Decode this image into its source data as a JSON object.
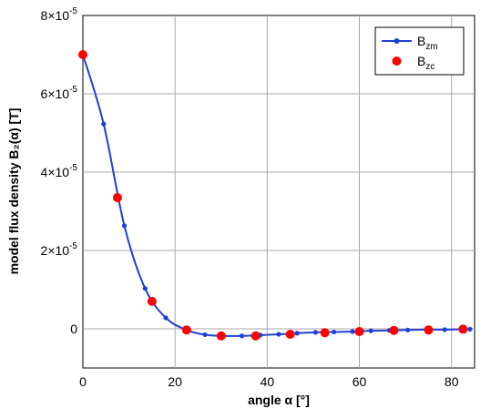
{
  "chart_data": {
    "type": "line",
    "xlabel": "angle α [°]",
    "ylabel": "model flux density B₂(α) [T]",
    "xlim": [
      0,
      85
    ],
    "ylim": [
      -1e-05,
      8e-05
    ],
    "x_ticks": [
      0,
      20,
      40,
      60,
      80
    ],
    "x_tick_labels": [
      "0",
      "20",
      "40",
      "60",
      "80"
    ],
    "y_ticks": [
      0,
      2e-05,
      4e-05,
      6e-05,
      8e-05
    ],
    "y_tick_labels": [
      {
        "base": "0",
        "exp": ""
      },
      {
        "base": "2×10",
        "exp": "-5"
      },
      {
        "base": "4×10",
        "exp": "-5"
      },
      {
        "base": "6×10",
        "exp": "-5"
      },
      {
        "base": "8×10",
        "exp": "-5"
      }
    ],
    "grid": true,
    "legend_position": "top-right",
    "series": [
      {
        "name": "B",
        "subscript": "zm",
        "style": "line+small-markers",
        "color": "#1f3fd6",
        "x": [
          0,
          4.5,
          9,
          13.5,
          18,
          22.5,
          26.5,
          30.5,
          34.5,
          38.5,
          42.5,
          46.5,
          50.5,
          54.5,
          58.5,
          62.5,
          66.5,
          70.5,
          74.5,
          78.5,
          82.5,
          84
        ],
        "y": [
          7e-05,
          5.23e-05,
          2.63e-05,
          1.03e-05,
          2.8e-06,
          -3e-07,
          -1.5e-06,
          -1.8e-06,
          -1.8e-06,
          -1.6e-06,
          -1.4e-06,
          -1.1e-06,
          -9e-07,
          -8e-07,
          -7e-07,
          -5e-07,
          -4e-07,
          -3e-07,
          -2e-07,
          -2e-07,
          -1e-07,
          -1e-07
        ]
      },
      {
        "name": "B",
        "subscript": "zc",
        "style": "markers",
        "color": "#ff0000",
        "x": [
          0,
          7.5,
          15,
          22.5,
          30,
          37.5,
          45,
          52.5,
          60,
          67.5,
          75,
          82.5
        ],
        "y": [
          7e-05,
          3.35e-05,
          7e-06,
          -3e-07,
          -1.8e-06,
          -1.8e-06,
          -1.4e-06,
          -1e-06,
          -7e-07,
          -4e-07,
          -3e-07,
          -1e-07
        ]
      }
    ]
  }
}
